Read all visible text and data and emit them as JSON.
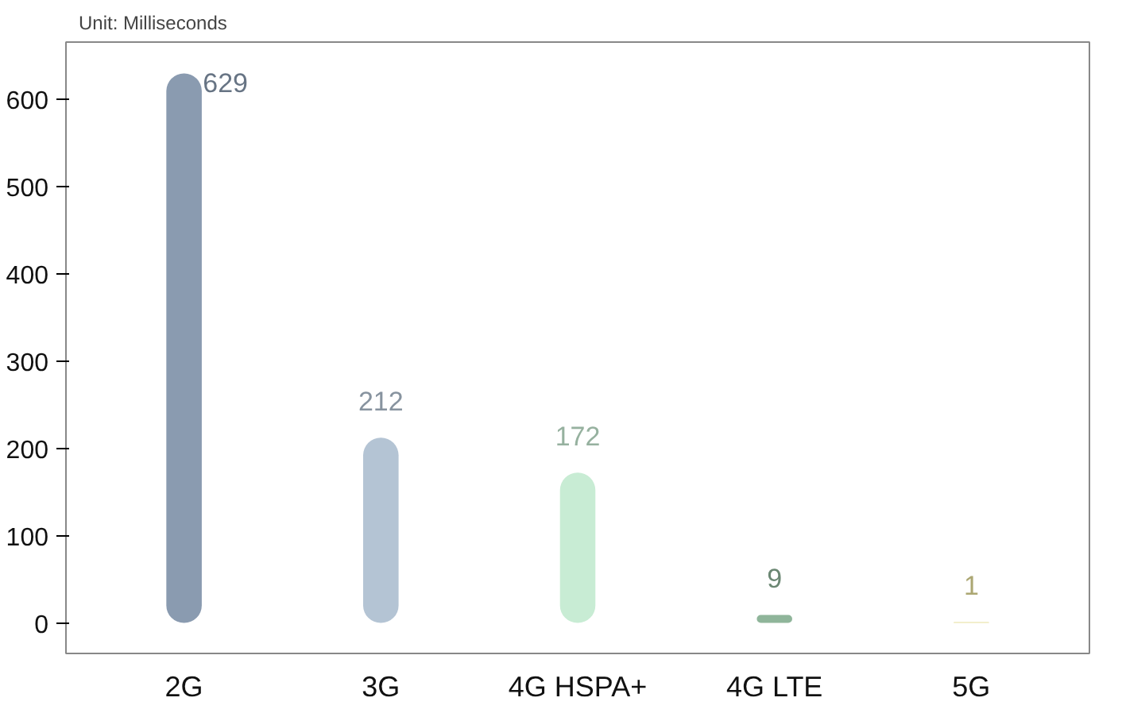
{
  "chart_data": {
    "type": "bar",
    "title": "Unit: Milliseconds",
    "categories": [
      "2G",
      "3G",
      "4G HSPA+",
      "4G LTE",
      "5G"
    ],
    "values": [
      629,
      212,
      172,
      9,
      1
    ],
    "colors": [
      "#8a9bb0",
      "#b4c4d4",
      "#c8ecd4",
      "#8fb59a",
      "#e6df9a"
    ],
    "ylim": [
      -35,
      665
    ],
    "yticks": [
      0,
      100,
      200,
      300,
      400,
      500,
      600
    ],
    "data_labels": true,
    "grid": false
  }
}
